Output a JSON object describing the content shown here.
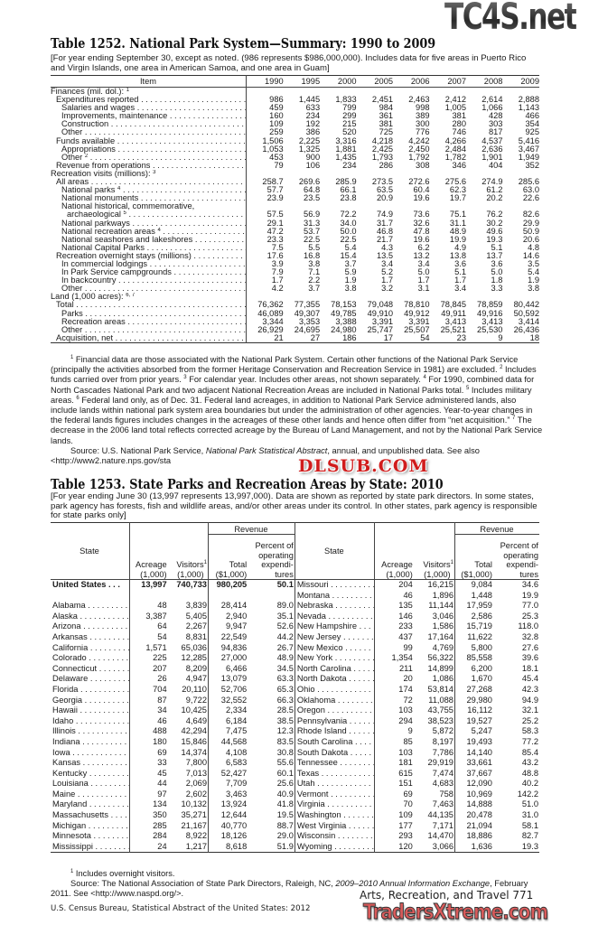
{
  "watermarks": {
    "top": "TC4S.net",
    "middle": "DLSUB.COM",
    "bottom": "TradersXtreme.com"
  },
  "table1252": {
    "title": "Table 1252. National Park System—Summary: 1990 to 2009",
    "headnote": "[For year ending September 30, except as noted. (986 represents $986,000,000). Includes data for five areas in Puerto Rico and Virgin Islands, one area in American Samoa, and one area in Guam]",
    "columns": [
      "Item",
      "1990",
      "1995",
      "2000",
      "2005",
      "2006",
      "2007",
      "2008",
      "2009"
    ],
    "rows": [
      {
        "label": "Finances (mil. dol.):",
        "sup": "1",
        "indent": 0,
        "values": []
      },
      {
        "label": "Expenditures reported",
        "indent": 1,
        "values": [
          "986",
          "1,445",
          "1,833",
          "2,451",
          "2,463",
          "2,412",
          "2,614",
          "2,888"
        ]
      },
      {
        "label": "Salaries and wages",
        "indent": 2,
        "values": [
          "459",
          "633",
          "799",
          "984",
          "998",
          "1,005",
          "1,066",
          "1,143"
        ]
      },
      {
        "label": "Improvements, maintenance",
        "indent": 2,
        "values": [
          "160",
          "234",
          "299",
          "361",
          "389",
          "381",
          "428",
          "466"
        ]
      },
      {
        "label": "Construction",
        "indent": 2,
        "values": [
          "109",
          "192",
          "215",
          "381",
          "300",
          "280",
          "303",
          "354"
        ]
      },
      {
        "label": "Other",
        "indent": 2,
        "values": [
          "259",
          "386",
          "520",
          "725",
          "776",
          "746",
          "817",
          "925"
        ]
      },
      {
        "label": "Funds available",
        "indent": 1,
        "values": [
          "1,506",
          "2,225",
          "3,316",
          "4,218",
          "4,242",
          "4,266",
          "4,537",
          "5,416"
        ]
      },
      {
        "label": "Appropriations",
        "indent": 2,
        "values": [
          "1,053",
          "1,325",
          "1,881",
          "2,425",
          "2,450",
          "2,484",
          "2,636",
          "3,467"
        ]
      },
      {
        "label": "Other",
        "sup": "2",
        "indent": 2,
        "values": [
          "453",
          "900",
          "1,435",
          "1,793",
          "1,792",
          "1,782",
          "1,901",
          "1,949"
        ]
      },
      {
        "label": "Revenue from operations",
        "indent": 1,
        "values": [
          "79",
          "106",
          "234",
          "286",
          "308",
          "346",
          "404",
          "352"
        ]
      },
      {
        "label": "Recreation visits (millions):",
        "sup": "3",
        "indent": 0,
        "values": []
      },
      {
        "label": "All areas",
        "indent": 1,
        "values": [
          "258.7",
          "269.6",
          "285.9",
          "273.5",
          "272.6",
          "275.6",
          "274.9",
          "285.6"
        ]
      },
      {
        "label": "National parks",
        "sup": "4",
        "indent": 2,
        "values": [
          "57.7",
          "64.8",
          "66.1",
          "63.5",
          "60.4",
          "62.3",
          "61.2",
          "63.0"
        ]
      },
      {
        "label": "National monuments",
        "indent": 2,
        "values": [
          "23.9",
          "23.5",
          "23.8",
          "20.9",
          "19.6",
          "19.7",
          "20.2",
          "22.6"
        ]
      },
      {
        "label": "National historical, commemorative,",
        "indent": 2,
        "values": []
      },
      {
        "label": "archaeological",
        "sup": "5",
        "indent": 3,
        "values": [
          "57.5",
          "56.9",
          "72.2",
          "74.9",
          "73.6",
          "75.1",
          "76.2",
          "82.6"
        ]
      },
      {
        "label": "National parkways",
        "indent": 2,
        "values": [
          "29.1",
          "31.3",
          "34.0",
          "31.7",
          "32.6",
          "31.1",
          "30.2",
          "29.9"
        ]
      },
      {
        "label": "National recreation areas",
        "sup": "4",
        "indent": 2,
        "values": [
          "47.2",
          "53.7",
          "50.0",
          "46.8",
          "47.8",
          "48.9",
          "49.6",
          "50.9"
        ]
      },
      {
        "label": "National seashores and lakeshores",
        "indent": 2,
        "values": [
          "23.3",
          "22.5",
          "22.5",
          "21.7",
          "19.6",
          "19.9",
          "19.3",
          "20.6"
        ]
      },
      {
        "label": "National Capital Parks",
        "indent": 2,
        "values": [
          "7.5",
          "5.5",
          "5.4",
          "4.3",
          "6.2",
          "4.9",
          "5.1",
          "4.8"
        ]
      },
      {
        "label": "Recreation overnight stays (millions)",
        "indent": 1,
        "values": [
          "17.6",
          "16.8",
          "15.4",
          "13.5",
          "13.2",
          "13.8",
          "13.7",
          "14.6"
        ]
      },
      {
        "label": "In commercial lodgings",
        "indent": 2,
        "values": [
          "3.9",
          "3.8",
          "3.7",
          "3.4",
          "3.4",
          "3.6",
          "3.6",
          "3.5"
        ]
      },
      {
        "label": "In Park Service campgrounds",
        "indent": 2,
        "values": [
          "7.9",
          "7.1",
          "5.9",
          "5.2",
          "5.0",
          "5.1",
          "5.0",
          "5.4"
        ]
      },
      {
        "label": "In backcountry",
        "indent": 2,
        "values": [
          "1.7",
          "2.2",
          "1.9",
          "1.7",
          "1.7",
          "1.7",
          "1.8",
          "1.9"
        ]
      },
      {
        "label": "Other",
        "indent": 2,
        "values": [
          "4.2",
          "3.7",
          "3.8",
          "3.2",
          "3.1",
          "3.4",
          "3.3",
          "3.8"
        ]
      },
      {
        "label": "Land (1,000 acres):",
        "sup": "6, 7",
        "indent": 0,
        "values": []
      },
      {
        "label": "Total",
        "indent": 1,
        "values": [
          "76,362",
          "77,355",
          "78,153",
          "79,048",
          "78,810",
          "78,845",
          "78,859",
          "80,442"
        ]
      },
      {
        "label": "Parks",
        "indent": 2,
        "values": [
          "46,089",
          "49,307",
          "49,785",
          "49,910",
          "49,912",
          "49,911",
          "49,916",
          "50,592"
        ]
      },
      {
        "label": "Recreation areas",
        "indent": 2,
        "values": [
          "3,344",
          "3,353",
          "3,388",
          "3,391",
          "3,391",
          "3,413",
          "3,413",
          "3,414"
        ]
      },
      {
        "label": "Other",
        "indent": 2,
        "values": [
          "26,929",
          "24,695",
          "24,980",
          "25,747",
          "25,507",
          "25,521",
          "25,530",
          "26,436"
        ]
      },
      {
        "label": "Acquisition, net",
        "indent": 1,
        "values": [
          "21",
          "27",
          "186",
          "17",
          "54",
          "23",
          "9",
          "18"
        ]
      }
    ],
    "footnotes": [
      {
        "sup": "1",
        "text": " Financial data are those associated with the National Park System. Certain other functions of the National Park Service (principally the activities absorbed from the former Heritage Conservation and Recreation Service in 1981) are excluded. "
      },
      {
        "sup": "2",
        "text": " Includes funds carried over from prior years. "
      },
      {
        "sup": "3",
        "text": " For calendar year. Includes other areas, not shown separately. "
      },
      {
        "sup": "4",
        "text": " For 1990, combined data for North Cascades National Park and two adjacent National Recreation Areas are included in National Parks total. "
      },
      {
        "sup": "5",
        "text": " Includes military areas. "
      },
      {
        "sup": "6",
        "text": " Federal land only, as of Dec. 31. Federal land acreages, in addition to National Park Service administered lands, also include lands within national park system area boundaries but under the administration of other agencies. Year-to-year changes in the federal lands figures includes changes in the acreages of these other lands and hence often differ from “net acquisition.” "
      },
      {
        "sup": "7",
        "text": " The decrease in the 2006 land total reflects corrected acreage by the Bureau of Land Management, and not by the National Park Service lands."
      }
    ],
    "source": {
      "pre": "Source: U.S. National Park Service, ",
      "italic": "National Park Statistical Abstract",
      "post": ", annual, and unpublished data. See also <http://www2.nature.nps.gov/sta"
    }
  },
  "table1253": {
    "title": "Table 1253. State Parks and Recreation Areas by State: 2010",
    "headnote": "[For year ending June 30 (13,997 represents 13,997,000). Data are shown as reported by state park directors. In some states, park agency has forests, fish and wildlife areas, and/or other areas under its control. In other states, park agency is responsible for state parks only]",
    "headers": {
      "state": "State",
      "revenue": "Revenue",
      "acreage": "Acreage (1,000)",
      "visitors": "Visitors (1,000)",
      "visitors_sup": "1",
      "total": "Total ($1,000)",
      "percent": "Percent of operating expendi- tures"
    },
    "left": [
      {
        "state": "United States",
        "values": [
          "13,997",
          "740,733",
          "980,205",
          "50.1"
        ],
        "bold": true
      },
      {
        "state": "",
        "values": [
          "",
          "",
          "",
          ""
        ]
      },
      {
        "state": "Alabama",
        "values": [
          "48",
          "3,839",
          "28,414",
          "89.0"
        ]
      },
      {
        "state": "Alaska",
        "values": [
          "3,387",
          "5,405",
          "2,940",
          "35.1"
        ]
      },
      {
        "state": "Arizona",
        "values": [
          "64",
          "2,267",
          "9,947",
          "52.6"
        ]
      },
      {
        "state": "Arkansas",
        "values": [
          "54",
          "8,831",
          "22,549",
          "44.2"
        ]
      },
      {
        "state": "California",
        "values": [
          "1,571",
          "65,036",
          "94,836",
          "26.7"
        ]
      },
      {
        "state": "Colorado",
        "values": [
          "225",
          "12,285",
          "27,000",
          "48.9"
        ]
      },
      {
        "state": "Connecticut",
        "values": [
          "207",
          "8,209",
          "6,466",
          "34.5"
        ]
      },
      {
        "state": "Delaware",
        "values": [
          "26",
          "4,947",
          "13,079",
          "63.3"
        ]
      },
      {
        "state": "Florida",
        "values": [
          "704",
          "20,110",
          "52,706",
          "65.3"
        ]
      },
      {
        "state": "Georgia",
        "values": [
          "87",
          "9,722",
          "32,552",
          "66.3"
        ]
      },
      {
        "state": "Hawaii",
        "values": [
          "34",
          "10,425",
          "2,334",
          "28.5"
        ]
      },
      {
        "state": "Idaho",
        "values": [
          "46",
          "4,649",
          "6,184",
          "38.5"
        ]
      },
      {
        "state": "Illinois",
        "values": [
          "488",
          "42,294",
          "7,475",
          "12.3"
        ]
      },
      {
        "state": "Indiana",
        "values": [
          "180",
          "15,846",
          "44,568",
          "83.5"
        ]
      },
      {
        "state": "Iowa",
        "values": [
          "69",
          "14,374",
          "4,108",
          "30.8"
        ]
      },
      {
        "state": "Kansas",
        "values": [
          "33",
          "7,800",
          "6,583",
          "55.6"
        ]
      },
      {
        "state": "Kentucky",
        "values": [
          "45",
          "7,013",
          "52,427",
          "60.1"
        ]
      },
      {
        "state": "Louisiana",
        "values": [
          "44",
          "2,069",
          "7,709",
          "25.6"
        ]
      },
      {
        "state": "Maine",
        "values": [
          "97",
          "2,602",
          "3,463",
          "40.9"
        ]
      },
      {
        "state": "Maryland",
        "values": [
          "134",
          "10,132",
          "13,924",
          "41.8"
        ]
      },
      {
        "state": "Massachusetts",
        "values": [
          "350",
          "35,271",
          "12,644",
          "19.5"
        ]
      },
      {
        "state": "Michigan",
        "values": [
          "285",
          "21,167",
          "40,770",
          "88.7"
        ]
      },
      {
        "state": "Minnesota",
        "values": [
          "284",
          "8,922",
          "18,126",
          "29.0"
        ]
      },
      {
        "state": "Mississippi",
        "values": [
          "24",
          "1,217",
          "8,618",
          "51.9"
        ]
      }
    ],
    "right": [
      {
        "state": "Missouri",
        "values": [
          "204",
          "16,215",
          "9,084",
          "34.6"
        ]
      },
      {
        "state": "Montana",
        "values": [
          "46",
          "1,896",
          "1,448",
          "19.9"
        ]
      },
      {
        "state": "Nebraska",
        "values": [
          "135",
          "11,144",
          "17,959",
          "77.0"
        ]
      },
      {
        "state": "Nevada",
        "values": [
          "146",
          "3,046",
          "2,586",
          "25.3"
        ]
      },
      {
        "state": "New Hampshire",
        "values": [
          "233",
          "1,586",
          "15,719",
          "118.0"
        ]
      },
      {
        "state": "New Jersey",
        "values": [
          "437",
          "17,164",
          "11,622",
          "32.8"
        ]
      },
      {
        "state": "New Mexico",
        "values": [
          "99",
          "4,769",
          "5,800",
          "27.6"
        ]
      },
      {
        "state": "New York",
        "values": [
          "1,354",
          "56,322",
          "85,558",
          "39.6"
        ]
      },
      {
        "state": "North Carolina",
        "values": [
          "211",
          "14,899",
          "6,200",
          "18.1"
        ]
      },
      {
        "state": "North Dakota",
        "values": [
          "20",
          "1,086",
          "1,670",
          "45.4"
        ]
      },
      {
        "state": "Ohio",
        "values": [
          "174",
          "53,814",
          "27,268",
          "42.3"
        ]
      },
      {
        "state": "Oklahoma",
        "values": [
          "72",
          "11,088",
          "29,980",
          "94.9"
        ]
      },
      {
        "state": "Oregon",
        "values": [
          "103",
          "43,755",
          "16,112",
          "32.1"
        ]
      },
      {
        "state": "Pennsylvania",
        "values": [
          "294",
          "38,523",
          "19,527",
          "25.2"
        ]
      },
      {
        "state": "Rhode Island",
        "values": [
          "9",
          "5,872",
          "5,247",
          "58.3"
        ]
      },
      {
        "state": "South Carolina",
        "values": [
          "85",
          "8,197",
          "19,493",
          "77.2"
        ]
      },
      {
        "state": "South Dakota",
        "values": [
          "103",
          "7,786",
          "14,140",
          "85.4"
        ]
      },
      {
        "state": "Tennessee",
        "values": [
          "181",
          "29,919",
          "33,661",
          "43.2"
        ]
      },
      {
        "state": "Texas",
        "values": [
          "615",
          "7,474",
          "37,667",
          "48.8"
        ]
      },
      {
        "state": "Utah",
        "values": [
          "151",
          "4,683",
          "12,090",
          "40.2"
        ]
      },
      {
        "state": "Vermont",
        "values": [
          "69",
          "758",
          "10,969",
          "142.2"
        ]
      },
      {
        "state": "Virginia",
        "values": [
          "70",
          "7,463",
          "14,888",
          "51.0"
        ]
      },
      {
        "state": "Washington",
        "values": [
          "109",
          "44,135",
          "20,478",
          "31.0"
        ]
      },
      {
        "state": "West Virginia",
        "values": [
          "177",
          "7,171",
          "21,094",
          "58.1"
        ]
      },
      {
        "state": "Wisconsin",
        "values": [
          "293",
          "14,470",
          "18,886",
          "82.7"
        ]
      },
      {
        "state": "Wyoming",
        "values": [
          "120",
          "3,066",
          "1,636",
          "19.3"
        ]
      }
    ],
    "footnote": {
      "sup": "1",
      "text": " Includes overnight visitors."
    },
    "source": {
      "pre": "Source: The National Association of State Park Directors, Raleigh, NC, ",
      "italic": "2009–2010 Annual Information Exchange",
      "post": ", February 2011. See <http://www.naspd.org/>."
    }
  },
  "folio": "Arts, Recreation, and Travel  771",
  "footer": "U.S. Census Bureau, Statistical Abstract of the United States: 2012"
}
